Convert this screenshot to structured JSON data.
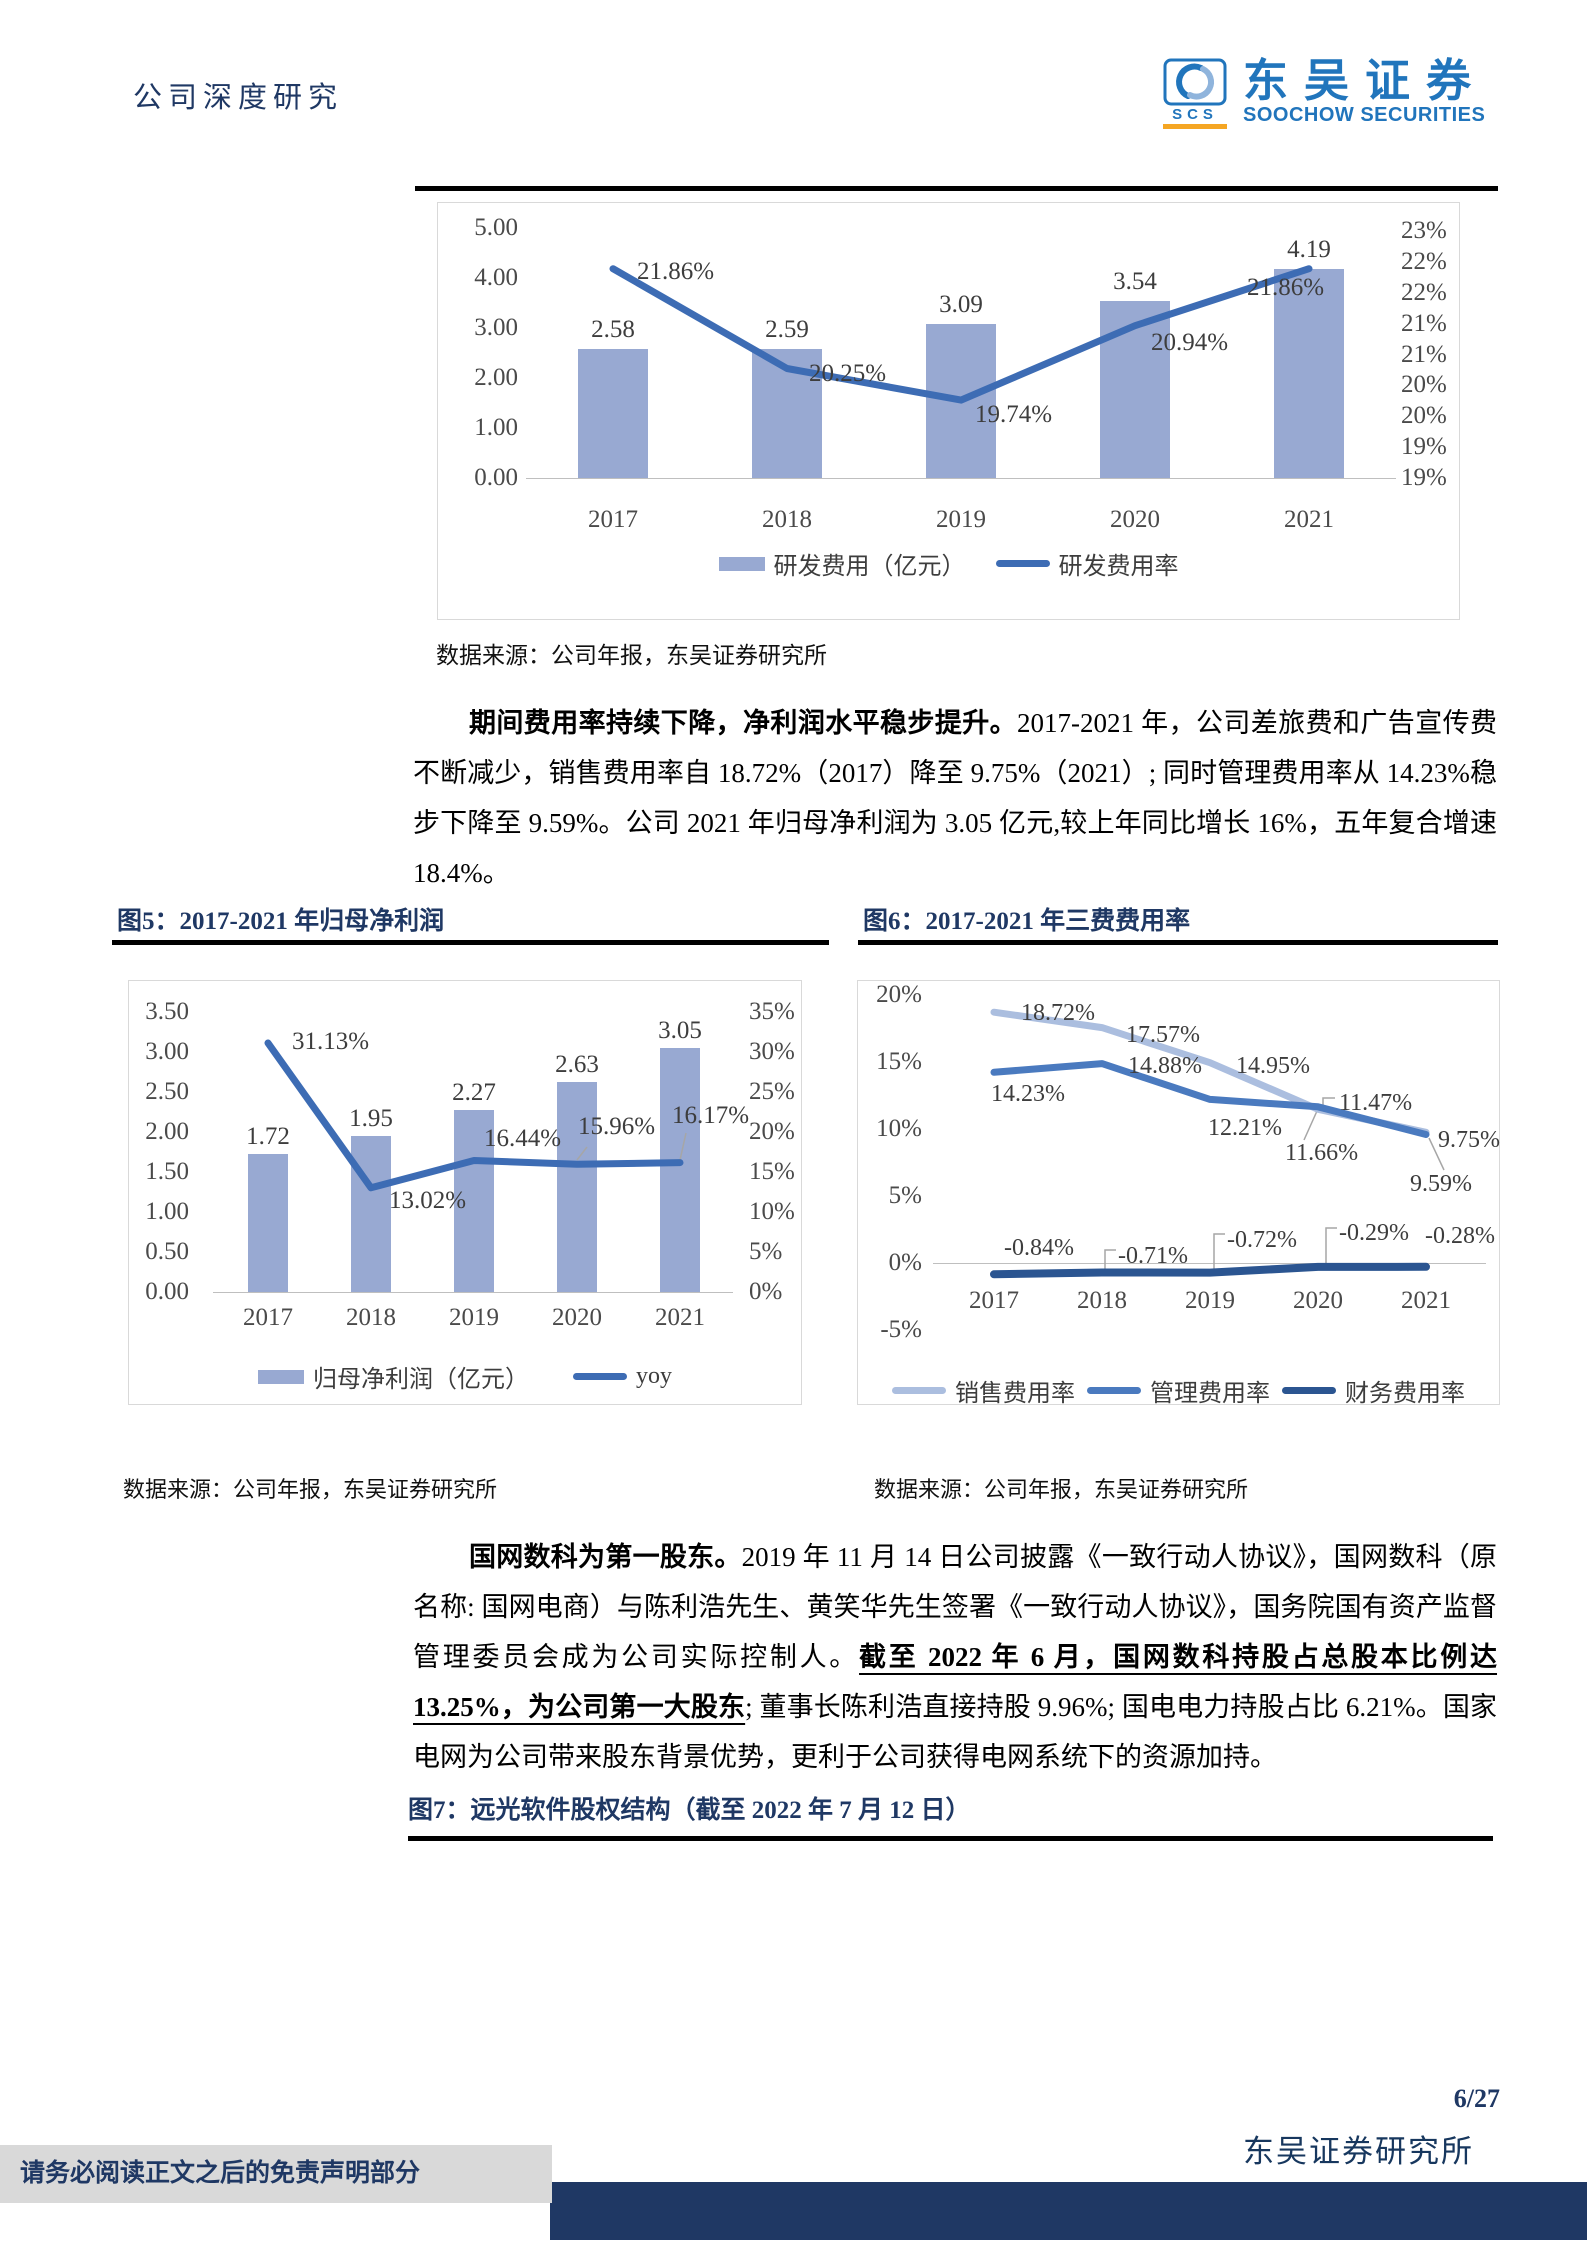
{
  "header": {
    "category": "公司深度研究",
    "logo": {
      "letters": "SCS",
      "name_cn": "东吴证券",
      "name_en": "SOOCHOW SECURITIES"
    }
  },
  "top_chart_source": "数据来源：公司年报，东吴证券研究所",
  "paragraph1": {
    "lead": "期间费用率持续下降，净利润水平稳步提升。",
    "body": "2017-2021 年，公司差旅费和广告宣传费不断减少，销售费用率自 18.72%（2017）降至 9.75%（2021）; 同时管理费用率从 14.23%稳步下降至 9.59%。公司 2021 年归母净利润为 3.05 亿元,较上年同比增长 16%，五年复合增速 18.4%。"
  },
  "figure5": {
    "title": "图5：2017-2021 年归母净利润",
    "source": "数据来源：公司年报，东吴证券研究所"
  },
  "figure6": {
    "title": "图6：2017-2021 年三费费用率",
    "source": "数据来源：公司年报，东吴证券研究所"
  },
  "paragraph2": {
    "lead": "国网数科为第一股东。",
    "body1": "2019 年 11 月 14 日公司披露《一致行动人协议》，国网数科（原名称: 国网电商）与陈利浩先生、黄笑华先生签署《一致行动人协议》，国务院国有资产监督管理委员会成为公司实际控制人。",
    "emphasis": "截至 2022 年 6 月，国网数科持股占总股本比例达 13.25%，为公司第一大股东",
    "body2": "; 董事长陈利浩直接持股 9.96%; 国电电力持股占比 6.21%。国家电网为公司带来股东背景优势，更利于公司获得电网系统下的资源加持。"
  },
  "figure7": {
    "title": "图7：远光软件股权结构（截至 2022 年 7 月 12 日）"
  },
  "footer": {
    "page": "6/27",
    "institute": "东吴证券研究所",
    "disclaimer": "请务必阅读正文之后的免责声明部分"
  },
  "colors": {
    "navy": "#1f3864",
    "brand_blue": "#2175bc",
    "bar_fill": "#98a9d2",
    "line_blue": "#3d6cb4",
    "line_light": "#abbedf",
    "line_mid": "#4a7abf",
    "line_dark": "#2b5591",
    "orange": "#f5a623",
    "leader_gray": "#a6a6a6"
  },
  "chart_data": [
    {
      "id": "rd-expense",
      "type": "bar+line",
      "title": "",
      "categories": [
        "2017",
        "2018",
        "2019",
        "2020",
        "2021"
      ],
      "series": [
        {
          "name": "研发费用（亿元）",
          "type": "bar",
          "values": [
            2.58,
            2.59,
            3.09,
            3.54,
            4.19
          ],
          "labels": [
            "2.58",
            "2.59",
            "3.09",
            "3.54",
            "4.19"
          ]
        },
        {
          "name": "研发费用率",
          "type": "line",
          "values": [
            21.86,
            20.25,
            19.74,
            20.94,
            21.86
          ],
          "labels": [
            "21.86%",
            "20.25%",
            "19.74%",
            "20.94%",
            "21.86%"
          ]
        }
      ],
      "left_axis": {
        "min": 0,
        "max": 5,
        "ticks": [
          "5.00",
          "4.00",
          "3.00",
          "2.00",
          "1.00",
          "0.00"
        ]
      },
      "right_axis": {
        "min": 19,
        "max": 23,
        "ticks": [
          "23%",
          "22%",
          "22%",
          "21%",
          "21%",
          "20%",
          "20%",
          "19%",
          "19%"
        ]
      },
      "legend_position": "bottom",
      "grid": false
    },
    {
      "id": "net-profit",
      "type": "bar+line",
      "title": "2017-2021 年归母净利润",
      "categories": [
        "2017",
        "2018",
        "2019",
        "2020",
        "2021"
      ],
      "series": [
        {
          "name": "归母净利润（亿元）",
          "type": "bar",
          "values": [
            1.72,
            1.95,
            2.27,
            2.63,
            3.05
          ],
          "labels": [
            "1.72",
            "1.95",
            "2.27",
            "2.63",
            "3.05"
          ]
        },
        {
          "name": "yoy",
          "type": "line",
          "values": [
            31.13,
            13.02,
            16.44,
            15.96,
            16.17
          ],
          "labels": [
            "31.13%",
            "13.02%",
            "16.44%",
            "15.96%",
            "16.17%"
          ]
        }
      ],
      "left_axis": {
        "min": 0,
        "max": 3.5,
        "ticks": [
          "3.50",
          "3.00",
          "2.50",
          "2.00",
          "1.50",
          "1.00",
          "0.50",
          "0.00"
        ]
      },
      "right_axis": {
        "min": 0,
        "max": 35,
        "ticks": [
          "35%",
          "30%",
          "25%",
          "20%",
          "15%",
          "10%",
          "5%",
          "0%"
        ]
      },
      "legend_position": "bottom",
      "grid": false
    },
    {
      "id": "expense-ratios",
      "type": "line",
      "title": "2017-2021 年三费费用率",
      "categories": [
        "2017",
        "2018",
        "2019",
        "2020",
        "2021"
      ],
      "series": [
        {
          "name": "销售费用率",
          "type": "line",
          "values": [
            18.72,
            17.57,
            14.95,
            11.47,
            9.75
          ],
          "labels": [
            "18.72%",
            "17.57%",
            "14.95%",
            "11.47%",
            "9.75%"
          ]
        },
        {
          "name": "管理费用率",
          "type": "line",
          "values": [
            14.23,
            14.88,
            12.21,
            11.66,
            9.59
          ],
          "labels": [
            "14.23%",
            "14.88%",
            "12.21%",
            "11.66%",
            "9.59%"
          ]
        },
        {
          "name": "财务费用率",
          "type": "line",
          "values": [
            -0.84,
            -0.71,
            -0.72,
            -0.29,
            -0.28
          ],
          "labels": [
            "-0.84%",
            "-0.71%",
            "-0.72%",
            "-0.29%",
            "-0.28%"
          ]
        }
      ],
      "left_axis": {
        "min": -5,
        "max": 20,
        "ticks": [
          "20%",
          "15%",
          "10%",
          "5%",
          "0%",
          "-5%"
        ]
      },
      "legend_position": "bottom",
      "grid": false
    }
  ]
}
